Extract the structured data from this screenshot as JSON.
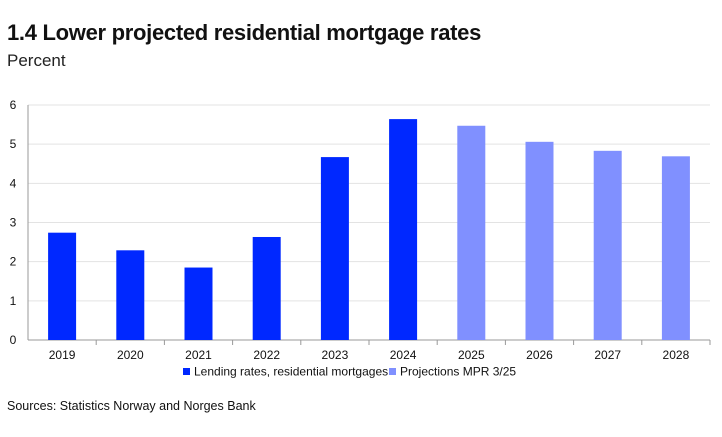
{
  "title": "1.4 Lower projected residential mortgage rates",
  "subtitle": "Percent",
  "source": "Sources: Statistics Norway and Norges Bank",
  "chart_data": {
    "type": "bar",
    "title": "1.4 Lower projected residential mortgage rates",
    "ylabel": "Percent",
    "xlabel": "",
    "ylim": [
      0,
      6
    ],
    "yticks": [
      0,
      1,
      2,
      3,
      4,
      5,
      6
    ],
    "grid": true,
    "legend": "bottom",
    "categories": [
      "2019",
      "2020",
      "2021",
      "2022",
      "2023",
      "2024",
      "2025",
      "2026",
      "2027",
      "2028"
    ],
    "series": [
      {
        "name": "Lending rates, residential mortgages",
        "color": "#0028ff",
        "values": [
          2.74,
          2.29,
          1.85,
          2.63,
          4.67,
          5.64,
          null,
          null,
          null,
          null
        ]
      },
      {
        "name": "Projections MPR 3/25",
        "color": "#8090ff",
        "values": [
          null,
          null,
          null,
          null,
          null,
          null,
          5.47,
          5.06,
          4.83,
          4.69
        ]
      }
    ]
  }
}
